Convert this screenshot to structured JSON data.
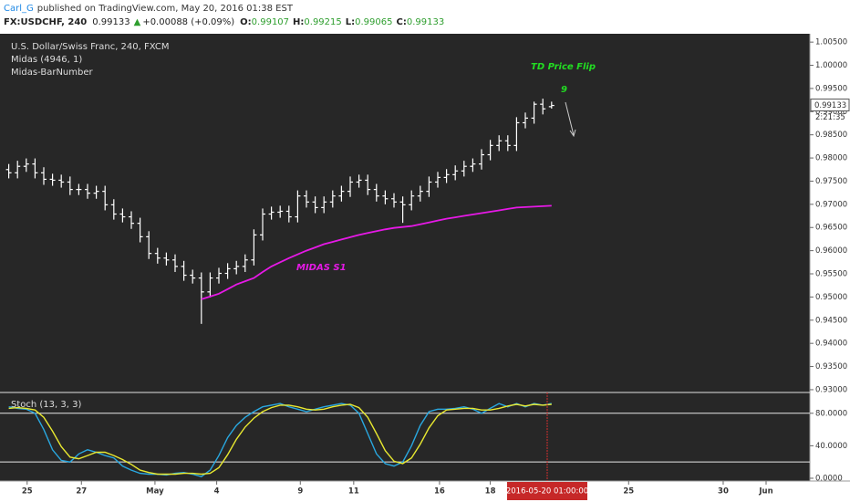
{
  "header": {
    "author": "Carl_G",
    "published": "published on TradingView.com, May 20, 2016 01:38 EST",
    "symbol": "FX:USDCHF, 240",
    "last": "0.99133",
    "change": "+0.00088 (+0.09%)",
    "quote": [
      {
        "label": "O:",
        "value": "0.99107"
      },
      {
        "label": "H:",
        "value": "0.99215"
      },
      {
        "label": "L:",
        "value": "0.99065"
      },
      {
        "label": "C:",
        "value": "0.99133"
      }
    ]
  },
  "x_axis": {
    "xlim": [
      -1,
      91.5
    ],
    "xticks": [
      {
        "value": 2.1,
        "label": "25"
      },
      {
        "value": 8.3,
        "label": "27"
      },
      {
        "value": 16.7,
        "label": "May"
      },
      {
        "value": 23.75,
        "label": "4"
      },
      {
        "value": 33.3,
        "label": "9"
      },
      {
        "value": 39.4,
        "label": "11"
      },
      {
        "value": 49.2,
        "label": "16"
      },
      {
        "value": 55,
        "label": "18"
      },
      {
        "value": 70.8,
        "label": "25"
      },
      {
        "value": 81.6,
        "label": "30"
      },
      {
        "value": 86.5,
        "label": "Jun"
      }
    ],
    "cursor": {
      "value": 61.5,
      "label": "2016-05-20 01:00:00"
    }
  },
  "chart_data": [
    {
      "type": "ohlc",
      "title": "U.S. Dollar/Swiss Franc, 240, FXCM",
      "indicators": [
        "Midas (4946, 1)",
        "Midas-BarNumber"
      ],
      "annotations": [
        "TD Price Flip",
        "9"
      ],
      "color": "#ffffff",
      "last_price": 0.99133,
      "countdown": "2:21:35",
      "ylim": [
        0.9294,
        1.0068
      ],
      "yticks": [
        {
          "value": 1.005,
          "label": "1.00500"
        },
        {
          "value": 1.0,
          "label": "1.00000"
        },
        {
          "value": 0.995,
          "label": "0.99500"
        },
        {
          "value": 0.99,
          "label": "0.99000"
        },
        {
          "value": 0.985,
          "label": "0.98500"
        },
        {
          "value": 0.98,
          "label": "0.98000"
        },
        {
          "value": 0.975,
          "label": "0.97500"
        },
        {
          "value": 0.97,
          "label": "0.97000"
        },
        {
          "value": 0.965,
          "label": "0.96500"
        },
        {
          "value": 0.96,
          "label": "0.96000"
        },
        {
          "value": 0.955,
          "label": "0.95500"
        },
        {
          "value": 0.95,
          "label": "0.95000"
        },
        {
          "value": 0.945,
          "label": "0.94500"
        },
        {
          "value": 0.94,
          "label": "0.94000"
        },
        {
          "value": 0.935,
          "label": "0.93500"
        },
        {
          "value": 0.93,
          "label": "0.93000"
        }
      ],
      "ohlc": {
        "open": [
          0.9775,
          0.9768,
          0.9782,
          0.9787,
          0.9768,
          0.9754,
          0.9752,
          0.9748,
          0.9732,
          0.9732,
          0.9724,
          0.9728,
          0.9699,
          0.9679,
          0.9673,
          0.9659,
          0.963,
          0.9594,
          0.9584,
          0.958,
          0.9566,
          0.9547,
          0.9541,
          0.9511,
          0.9541,
          0.9551,
          0.9561,
          0.9566,
          0.958,
          0.9634,
          0.9679,
          0.9683,
          0.9685,
          0.9673,
          0.9718,
          0.9705,
          0.9693,
          0.9705,
          0.9718,
          0.9728,
          0.9748,
          0.9752,
          0.9732,
          0.9718,
          0.9712,
          0.9705,
          0.9699,
          0.9718,
          0.9728,
          0.9748,
          0.9758,
          0.9764,
          0.9772,
          0.9782,
          0.9787,
          0.9807,
          0.9827,
          0.9837,
          0.9827,
          0.9876,
          0.9886,
          0.9916,
          0.99107
        ],
        "high": [
          0.9787,
          0.9794,
          0.9799,
          0.9799,
          0.978,
          0.9766,
          0.9764,
          0.976,
          0.9744,
          0.9744,
          0.974,
          0.974,
          0.9711,
          0.9691,
          0.9685,
          0.9671,
          0.9642,
          0.9606,
          0.9596,
          0.9592,
          0.9578,
          0.9559,
          0.9553,
          0.9553,
          0.9563,
          0.9573,
          0.9578,
          0.9592,
          0.9646,
          0.9691,
          0.9695,
          0.9697,
          0.9697,
          0.973,
          0.973,
          0.9717,
          0.9717,
          0.973,
          0.974,
          0.976,
          0.9764,
          0.9764,
          0.9744,
          0.973,
          0.9724,
          0.9717,
          0.973,
          0.974,
          0.976,
          0.977,
          0.9776,
          0.9784,
          0.9794,
          0.9799,
          0.9819,
          0.9839,
          0.9849,
          0.9849,
          0.9888,
          0.9898,
          0.99215,
          0.9928,
          0.99215
        ],
        "low": [
          0.9756,
          0.9756,
          0.977,
          0.9756,
          0.9742,
          0.974,
          0.9736,
          0.972,
          0.972,
          0.9712,
          0.9712,
          0.9687,
          0.9667,
          0.9661,
          0.9647,
          0.9618,
          0.9582,
          0.9572,
          0.9568,
          0.9554,
          0.9535,
          0.9529,
          0.9442,
          0.9499,
          0.9529,
          0.9539,
          0.9549,
          0.9554,
          0.9568,
          0.9622,
          0.9667,
          0.9671,
          0.9661,
          0.9661,
          0.9693,
          0.9681,
          0.9681,
          0.9693,
          0.9706,
          0.9716,
          0.9736,
          0.972,
          0.9706,
          0.97,
          0.9693,
          0.966,
          0.9687,
          0.9706,
          0.9716,
          0.9736,
          0.9746,
          0.9752,
          0.976,
          0.977,
          0.9775,
          0.9795,
          0.9815,
          0.9815,
          0.9815,
          0.9864,
          0.9874,
          0.9894,
          0.99065
        ],
        "close": [
          0.9768,
          0.9782,
          0.9787,
          0.9768,
          0.9754,
          0.9752,
          0.9748,
          0.9732,
          0.9732,
          0.9724,
          0.9728,
          0.9699,
          0.9679,
          0.9673,
          0.9659,
          0.963,
          0.9594,
          0.9584,
          0.958,
          0.9566,
          0.9547,
          0.9541,
          0.9511,
          0.9541,
          0.9551,
          0.9561,
          0.9566,
          0.958,
          0.9634,
          0.9679,
          0.9683,
          0.9685,
          0.9673,
          0.9718,
          0.9705,
          0.9693,
          0.9705,
          0.9718,
          0.9728,
          0.9748,
          0.9752,
          0.9732,
          0.9718,
          0.9712,
          0.9705,
          0.9699,
          0.9718,
          0.9728,
          0.9748,
          0.9758,
          0.9764,
          0.9772,
          0.9782,
          0.9787,
          0.9807,
          0.9827,
          0.9837,
          0.9827,
          0.9876,
          0.9886,
          0.9916,
          0.9906,
          0.99133
        ]
      },
      "series": [
        {
          "name": "MIDAS S1",
          "color": "#e619e6",
          "values": [
            null,
            null,
            null,
            null,
            null,
            null,
            null,
            null,
            null,
            null,
            null,
            null,
            null,
            null,
            null,
            null,
            null,
            null,
            null,
            null,
            null,
            null,
            0.9495,
            0.9501,
            0.9507,
            0.9517,
            0.9527,
            0.9534,
            0.9541,
            0.9554,
            0.9566,
            0.9575,
            0.9584,
            0.9592,
            0.96,
            0.9607,
            0.9614,
            0.9619,
            0.9624,
            0.9629,
            0.9634,
            0.9638,
            0.9642,
            0.9646,
            0.9649,
            0.9651,
            0.9653,
            0.9657,
            0.9661,
            0.9665,
            0.9669,
            0.9672,
            0.9675,
            0.9678,
            0.9681,
            0.9684,
            0.9687,
            0.969,
            0.9693,
            0.9694,
            0.9695,
            0.9696,
            0.9697
          ]
        }
      ]
    },
    {
      "type": "line",
      "title": "Stoch (13, 3, 3)",
      "ylim": [
        -3.4,
        105.6
      ],
      "yticks": [
        {
          "value": 80,
          "label": "80.0000"
        },
        {
          "value": 40,
          "label": "40.0000"
        },
        {
          "value": 0,
          "label": "0.0000"
        }
      ],
      "bands": [
        20,
        80
      ],
      "series": [
        {
          "color": "#29a8e0",
          "values": [
            88,
            86,
            85,
            80,
            60,
            35,
            22,
            20,
            30,
            35,
            32,
            28,
            25,
            15,
            10,
            6,
            5,
            5,
            4,
            6,
            7,
            5,
            2,
            10,
            28,
            50,
            65,
            75,
            82,
            88,
            90,
            92,
            88,
            85,
            82,
            85,
            88,
            90,
            92,
            90,
            80,
            55,
            30,
            18,
            15,
            20,
            40,
            65,
            82,
            85,
            85,
            86,
            88,
            85,
            80,
            86,
            92,
            88,
            92,
            88,
            92,
            90,
            92
          ]
        },
        {
          "color": "#e8e830",
          "values": [
            86,
            87,
            86,
            84,
            75,
            58,
            39,
            26,
            24,
            28,
            32,
            32,
            28,
            23,
            17,
            10,
            7,
            5,
            5,
            5,
            6,
            6,
            5,
            6,
            13,
            29,
            48,
            63,
            74,
            82,
            87,
            90,
            90,
            88,
            85,
            84,
            85,
            88,
            90,
            91,
            87,
            75,
            55,
            34,
            21,
            18,
            25,
            42,
            62,
            77,
            84,
            85,
            86,
            86,
            84,
            84,
            86,
            89,
            91,
            89,
            91,
            90,
            91
          ]
        }
      ]
    }
  ]
}
